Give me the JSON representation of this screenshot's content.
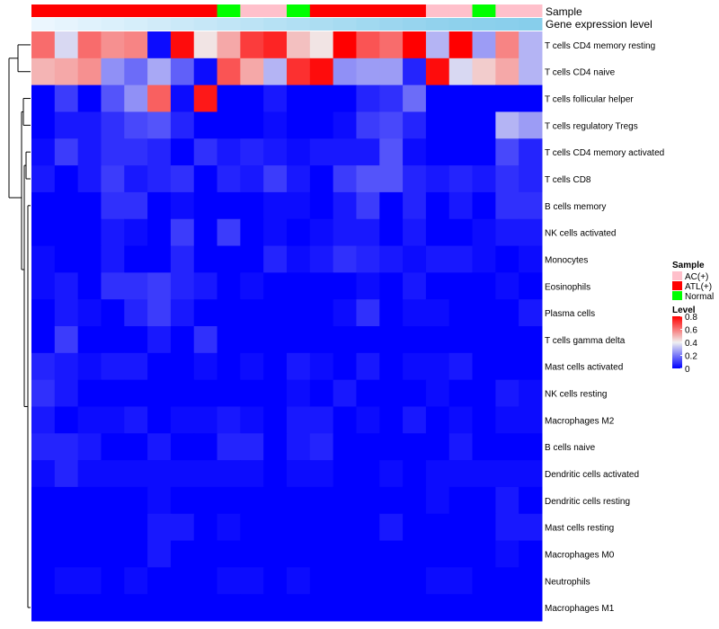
{
  "chart_data": {
    "type": "heatmap",
    "title": "",
    "annotation_labels": {
      "sample": "Sample",
      "expression": "Gene expression level"
    },
    "sample_groups": [
      "ATL(+)",
      "ATL(+)",
      "ATL(+)",
      "ATL(+)",
      "ATL(+)",
      "ATL(+)",
      "ATL(+)",
      "ATL(+)",
      "Normal",
      "AC(+)",
      "AC(+)",
      "Normal",
      "ATL(+)",
      "ATL(+)",
      "ATL(+)",
      "ATL(+)",
      "ATL(+)",
      "AC(+)",
      "AC(+)",
      "Normal",
      "AC(+)",
      "AC(+)"
    ],
    "expression_gradient": [
      0.05,
      0.1,
      0.15,
      0.2,
      0.25,
      0.3,
      0.35,
      0.4,
      0.45,
      0.5,
      0.55,
      0.6,
      0.65,
      0.7,
      0.75,
      0.8,
      0.85,
      0.9,
      0.93,
      0.95,
      0.97,
      1.0
    ],
    "rows": [
      "T cells CD4 memory resting",
      "T cells CD4 naive",
      "T cells follicular helper",
      "T cells regulatory  Tregs",
      "T cells CD4 memory activated",
      "T cells CD8",
      "B cells memory",
      "NK cells activated",
      "Monocytes",
      "Eosinophils",
      "Plasma cells",
      "T cells gamma delta",
      "Mast cells activated",
      "NK cells resting",
      "Macrophages M2",
      "B cells naive",
      "Dendritic cells activated",
      "Dendritic cells resting",
      "Mast cells resting",
      "Macrophages M0",
      "Neutrophils",
      "Macrophages M1"
    ],
    "values": [
      [
        0.62,
        0.36,
        0.62,
        0.56,
        0.58,
        0.02,
        0.78,
        0.42,
        0.52,
        0.7,
        0.74,
        0.48,
        0.42,
        0.8,
        0.66,
        0.62,
        0.8,
        0.3,
        0.8,
        0.26,
        0.58,
        0.3
      ],
      [
        0.5,
        0.52,
        0.56,
        0.24,
        0.18,
        0.28,
        0.16,
        0.02,
        0.66,
        0.52,
        0.3,
        0.72,
        0.78,
        0.24,
        0.26,
        0.26,
        0.06,
        0.78,
        0.36,
        0.46,
        0.52,
        0.3
      ],
      [
        0.0,
        0.1,
        0.0,
        0.14,
        0.24,
        0.64,
        0.02,
        0.76,
        0.0,
        0.0,
        0.04,
        0.0,
        0.0,
        0.0,
        0.06,
        0.08,
        0.18,
        0.0,
        0.0,
        0.0,
        0.0,
        0.0
      ],
      [
        0.0,
        0.04,
        0.04,
        0.08,
        0.12,
        0.14,
        0.06,
        0.0,
        0.0,
        0.0,
        0.02,
        0.0,
        0.0,
        0.02,
        0.1,
        0.12,
        0.06,
        0.0,
        0.0,
        0.0,
        0.3,
        0.26
      ],
      [
        0.02,
        0.1,
        0.04,
        0.08,
        0.08,
        0.06,
        0.0,
        0.08,
        0.04,
        0.06,
        0.04,
        0.02,
        0.04,
        0.04,
        0.04,
        0.14,
        0.02,
        0.0,
        0.0,
        0.0,
        0.12,
        0.06
      ],
      [
        0.04,
        0.0,
        0.04,
        0.1,
        0.04,
        0.06,
        0.08,
        0.0,
        0.06,
        0.04,
        0.1,
        0.04,
        0.0,
        0.1,
        0.14,
        0.14,
        0.06,
        0.04,
        0.06,
        0.04,
        0.08,
        0.06
      ],
      [
        0.0,
        0.0,
        0.0,
        0.08,
        0.08,
        0.0,
        0.02,
        0.0,
        0.0,
        0.0,
        0.02,
        0.02,
        0.0,
        0.04,
        0.1,
        0.0,
        0.06,
        0.0,
        0.04,
        0.0,
        0.08,
        0.08
      ],
      [
        0.0,
        0.0,
        0.0,
        0.04,
        0.02,
        0.0,
        0.1,
        0.0,
        0.1,
        0.0,
        0.02,
        0.0,
        0.02,
        0.04,
        0.04,
        0.0,
        0.04,
        0.0,
        0.0,
        0.02,
        0.04,
        0.04
      ],
      [
        0.02,
        0.0,
        0.0,
        0.04,
        0.0,
        0.0,
        0.06,
        0.0,
        0.0,
        0.0,
        0.06,
        0.02,
        0.04,
        0.08,
        0.06,
        0.04,
        0.02,
        0.04,
        0.04,
        0.02,
        0.0,
        0.02
      ],
      [
        0.02,
        0.04,
        0.0,
        0.08,
        0.08,
        0.1,
        0.06,
        0.04,
        0.0,
        0.02,
        0.0,
        0.0,
        0.0,
        0.0,
        0.02,
        0.0,
        0.04,
        0.0,
        0.0,
        0.0,
        0.02,
        0.0
      ],
      [
        0.0,
        0.04,
        0.02,
        0.0,
        0.06,
        0.1,
        0.04,
        0.0,
        0.0,
        0.0,
        0.0,
        0.0,
        0.0,
        0.02,
        0.08,
        0.0,
        0.02,
        0.02,
        0.0,
        0.0,
        0.0,
        0.04
      ],
      [
        0.0,
        0.1,
        0.0,
        0.0,
        0.0,
        0.04,
        0.0,
        0.08,
        0.0,
        0.0,
        0.0,
        0.0,
        0.0,
        0.0,
        0.0,
        0.0,
        0.0,
        0.0,
        0.0,
        0.0,
        0.0,
        0.0
      ],
      [
        0.06,
        0.04,
        0.02,
        0.04,
        0.04,
        0.0,
        0.0,
        0.02,
        0.0,
        0.02,
        0.0,
        0.04,
        0.02,
        0.0,
        0.04,
        0.0,
        0.02,
        0.02,
        0.04,
        0.0,
        0.0,
        0.0
      ],
      [
        0.08,
        0.04,
        0.0,
        0.0,
        0.0,
        0.0,
        0.0,
        0.0,
        0.0,
        0.0,
        0.0,
        0.02,
        0.0,
        0.04,
        0.0,
        0.0,
        0.0,
        0.02,
        0.0,
        0.0,
        0.04,
        0.02
      ],
      [
        0.04,
        0.0,
        0.02,
        0.02,
        0.04,
        0.0,
        0.02,
        0.02,
        0.04,
        0.02,
        0.0,
        0.04,
        0.04,
        0.0,
        0.02,
        0.0,
        0.04,
        0.0,
        0.02,
        0.0,
        0.02,
        0.02
      ],
      [
        0.06,
        0.06,
        0.04,
        0.0,
        0.0,
        0.04,
        0.0,
        0.0,
        0.06,
        0.06,
        0.0,
        0.04,
        0.06,
        0.0,
        0.0,
        0.0,
        0.0,
        0.0,
        0.04,
        0.0,
        0.0,
        0.0
      ],
      [
        0.02,
        0.06,
        0.02,
        0.02,
        0.02,
        0.02,
        0.02,
        0.02,
        0.02,
        0.02,
        0.0,
        0.02,
        0.02,
        0.0,
        0.0,
        0.02,
        0.0,
        0.02,
        0.02,
        0.02,
        0.02,
        0.02
      ],
      [
        0.0,
        0.0,
        0.0,
        0.0,
        0.0,
        0.02,
        0.0,
        0.0,
        0.0,
        0.0,
        0.0,
        0.0,
        0.0,
        0.0,
        0.0,
        0.0,
        0.0,
        0.02,
        0.0,
        0.0,
        0.04,
        0.0
      ],
      [
        0.0,
        0.0,
        0.0,
        0.0,
        0.0,
        0.04,
        0.04,
        0.0,
        0.02,
        0.0,
        0.0,
        0.0,
        0.0,
        0.0,
        0.0,
        0.04,
        0.0,
        0.0,
        0.0,
        0.0,
        0.04,
        0.04
      ],
      [
        0.0,
        0.0,
        0.0,
        0.0,
        0.0,
        0.04,
        0.0,
        0.0,
        0.0,
        0.0,
        0.0,
        0.0,
        0.0,
        0.0,
        0.0,
        0.0,
        0.0,
        0.0,
        0.0,
        0.0,
        0.02,
        0.0
      ],
      [
        0.0,
        0.02,
        0.02,
        0.0,
        0.02,
        0.0,
        0.0,
        0.0,
        0.02,
        0.02,
        0.0,
        0.02,
        0.0,
        0.0,
        0.0,
        0.0,
        0.0,
        0.02,
        0.02,
        0.0,
        0.0,
        0.0
      ],
      [
        0.0,
        0.0,
        0.0,
        0.0,
        0.0,
        0.0,
        0.0,
        0.0,
        0.0,
        0.0,
        0.0,
        0.0,
        0.0,
        0.0,
        0.0,
        0.0,
        0.0,
        0.0,
        0.0,
        0.0,
        0.0,
        0.0
      ]
    ],
    "legend_sample": {
      "title": "Sample",
      "items": [
        {
          "label": "AC(+)",
          "color": "#ffc0cb"
        },
        {
          "label": "ATL(+)",
          "color": "#ff0000"
        },
        {
          "label": "Normal",
          "color": "#00ff00"
        }
      ]
    },
    "legend_level": {
      "title": "Level",
      "ticks": [
        0.8,
        0.6,
        0.4,
        0.2,
        0
      ],
      "range": [
        0,
        0.8
      ]
    },
    "colors": {
      "low": "#0000ff",
      "mid": "#f0f0f0",
      "high": "#ff0000",
      "expr_low": "#f0f8ff",
      "expr_high": "#87ceeb"
    }
  }
}
